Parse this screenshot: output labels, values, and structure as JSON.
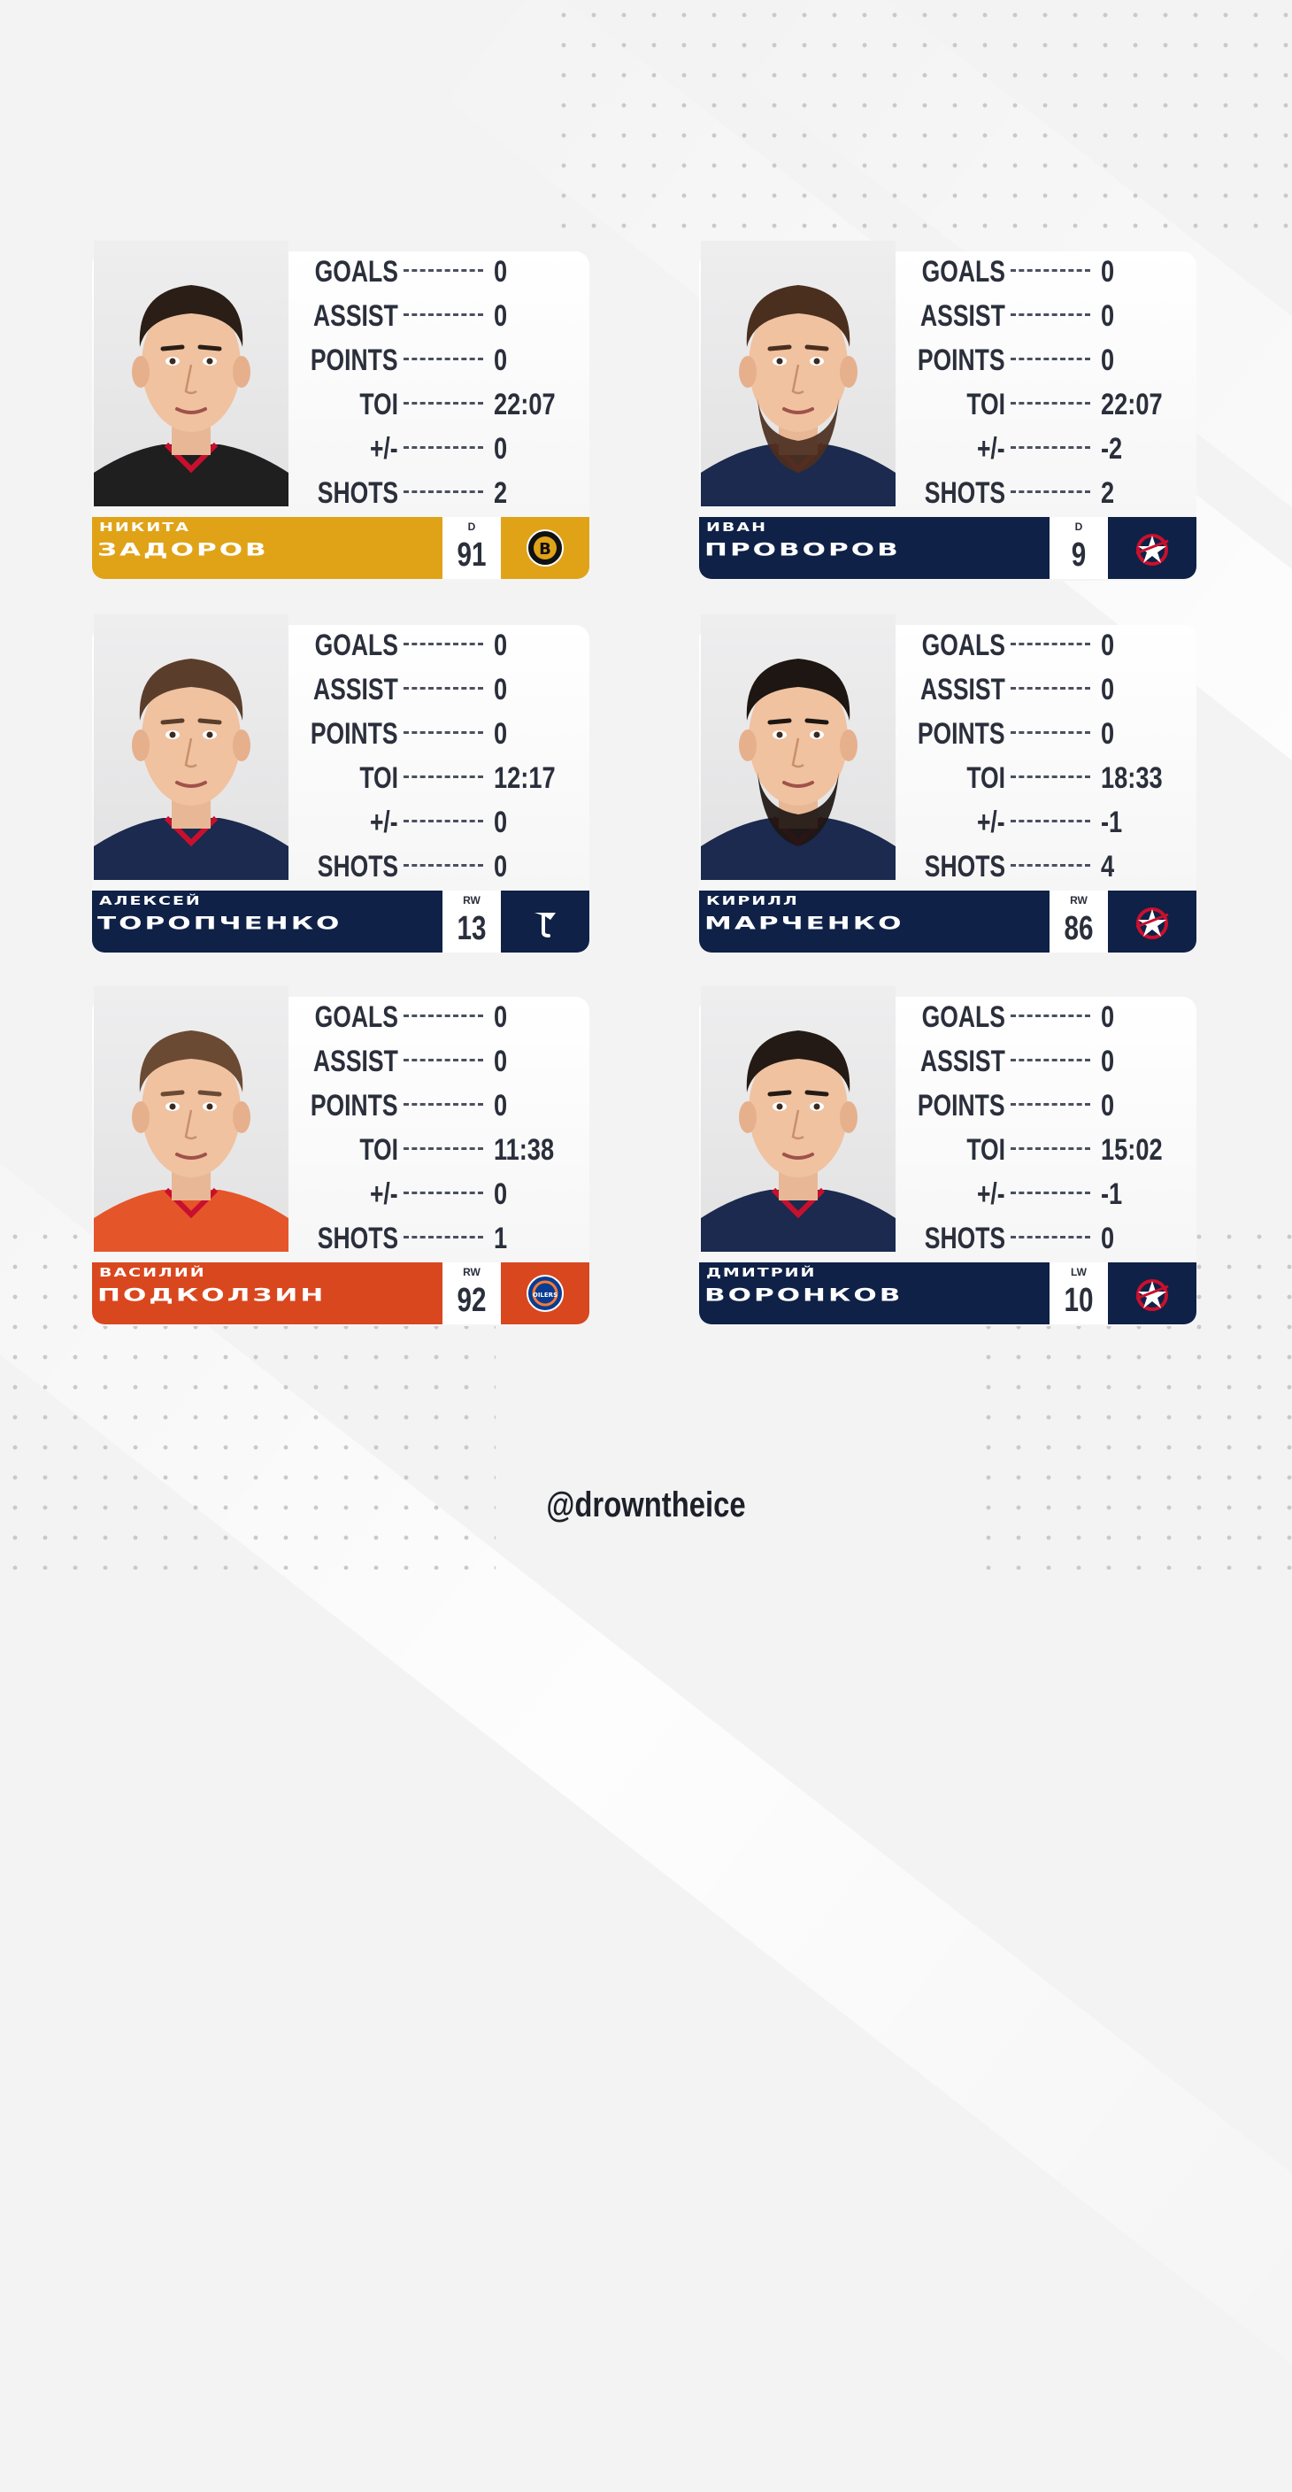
{
  "stat_labels": [
    "GOALS",
    "ASSIST",
    "POINTS",
    "TOI",
    "+/-",
    "SHOTS"
  ],
  "players": [
    {
      "first_name": "НИКИТА",
      "last_name": "ЗАДОРОВ",
      "position": "D",
      "number": "91",
      "team_logo": "bruins-logo-icon",
      "bar_color": "#e0a317",
      "logo_bg": "#e0a317",
      "jersey_color": "#1f1f1f",
      "stats": [
        "0",
        "0",
        "0",
        "22:07",
        "0",
        "2"
      ]
    },
    {
      "first_name": "ИВАН",
      "last_name": "ПРОВОРОВ",
      "position": "D",
      "number": "9",
      "team_logo": "blue-jackets-logo-icon",
      "bar_color": "#0f2147",
      "logo_bg": "#0f2147",
      "jersey_color": "#1b2a4e",
      "stats": [
        "0",
        "0",
        "0",
        "22:07",
        "-2",
        "2"
      ]
    },
    {
      "first_name": "АЛЕКСЕЙ",
      "last_name": "ТОРОПЧЕНКО",
      "position": "RW",
      "number": "13",
      "team_logo": "blues-logo-icon",
      "bar_color": "#0f2147",
      "logo_bg": "#0f2147",
      "jersey_color": "#1b2a4e",
      "stats": [
        "0",
        "0",
        "0",
        "12:17",
        "0",
        "0"
      ]
    },
    {
      "first_name": "КИРИЛЛ",
      "last_name": "МАРЧЕНКО",
      "position": "RW",
      "number": "86",
      "team_logo": "blue-jackets-logo-icon",
      "bar_color": "#0f2147",
      "logo_bg": "#0f2147",
      "jersey_color": "#1b2a4e",
      "stats": [
        "0",
        "0",
        "0",
        "18:33",
        "-1",
        "4"
      ]
    },
    {
      "first_name": "ВАСИЛИЙ",
      "last_name": "ПОДКОЛЗИН",
      "position": "RW",
      "number": "92",
      "team_logo": "oilers-logo-icon",
      "bar_color": "#d9471f",
      "logo_bg": "#d9471f",
      "jersey_color": "#e5552a",
      "stats": [
        "0",
        "0",
        "0",
        "11:38",
        "0",
        "1"
      ]
    },
    {
      "first_name": "ДМИТРИЙ",
      "last_name": "ВОРОНКОВ",
      "position": "LW",
      "number": "10",
      "team_logo": "blue-jackets-logo-icon",
      "bar_color": "#0f2147",
      "logo_bg": "#0f2147",
      "jersey_color": "#1b2a4e",
      "stats": [
        "0",
        "0",
        "0",
        "15:02",
        "-1",
        "0"
      ]
    }
  ],
  "footer": {
    "handle": "@drowntheice"
  }
}
